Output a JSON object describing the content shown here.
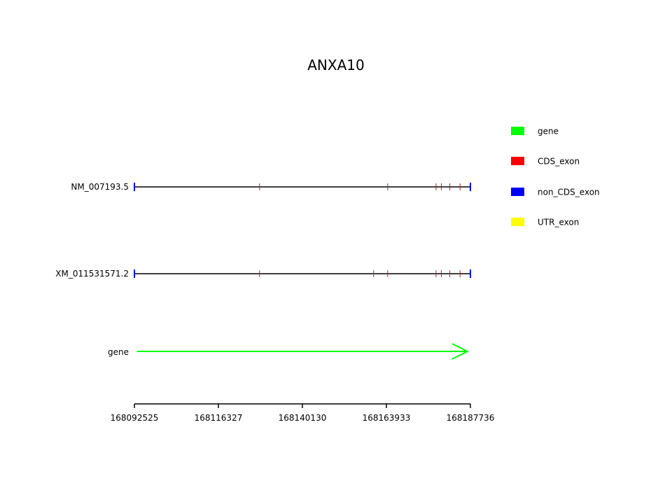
{
  "title": "ANXA10",
  "colors": {
    "gene": "#00ff00",
    "cds_exon": "#ff0000",
    "non_cds_exon": "#0000ff",
    "utr_exon": "#ffff00",
    "intron": "#000000"
  },
  "legend": [
    {
      "label": "gene",
      "color": "#00ff00"
    },
    {
      "label": "CDS_exon",
      "color": "#ff0000"
    },
    {
      "label": "non_CDS_exon",
      "color": "#0000ff"
    },
    {
      "label": "UTR_exon",
      "color": "#ffff00"
    }
  ],
  "chart_data": {
    "type": "gene-structure",
    "title": "ANXA10",
    "xlim": [
      168092525,
      168187736
    ],
    "xticks": [
      168092525,
      168116327,
      168140130,
      168163933,
      168187736
    ],
    "tracks": [
      {
        "label": "NM_007193.5",
        "start": 168092525,
        "end": 168187736,
        "non_cds_exons": [
          168092525,
          168187736
        ],
        "cds_exons": [
          168128000,
          168164300,
          168178000,
          168179500,
          168181900,
          168184800
        ]
      },
      {
        "label": "XM_011531571.2",
        "start": 168092525,
        "end": 168187736,
        "non_cds_exons": [
          168092525,
          168187736
        ],
        "cds_exons": [
          168128000,
          168160300,
          168164300,
          168178000,
          168179500,
          168181900,
          168184800
        ]
      }
    ],
    "gene": {
      "label": "gene",
      "start": 168093200,
      "end": 168186900,
      "strand": "+"
    }
  }
}
